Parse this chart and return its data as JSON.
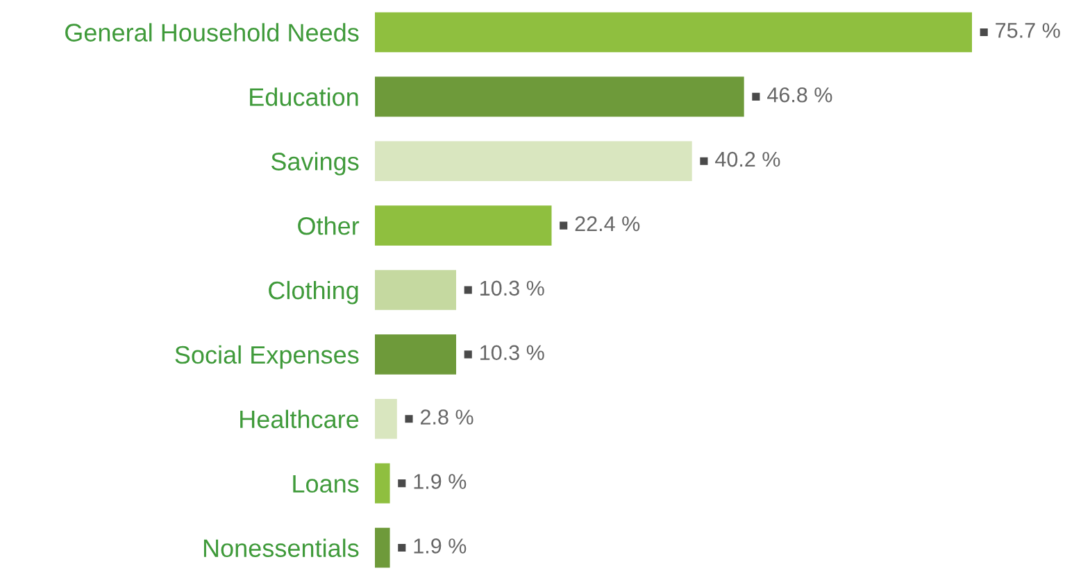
{
  "chart_data": {
    "type": "bar",
    "orientation": "horizontal",
    "categories": [
      "General Household Needs",
      "Education",
      "Savings",
      "Other",
      "Clothing",
      "Social Expenses",
      "Healthcare",
      "Loans",
      "Nonessentials"
    ],
    "values": [
      75.7,
      46.8,
      40.2,
      22.4,
      10.3,
      10.3,
      2.8,
      1.9,
      1.9
    ],
    "colors": [
      "#8fbf3f",
      "#6e9a3a",
      "#d9e6bf",
      "#8fbf3f",
      "#c5d9a0",
      "#6e9a3a",
      "#d9e6bf",
      "#8fbf3f",
      "#6e9a3a"
    ],
    "value_labels": [
      "75.7 %",
      "46.8 %",
      "40.2 %",
      "22.4 %",
      "10.3 %",
      "10.3 %",
      "2.8 %",
      "1.9 %",
      "1.9 %"
    ],
    "grid": false,
    "legend": false
  }
}
